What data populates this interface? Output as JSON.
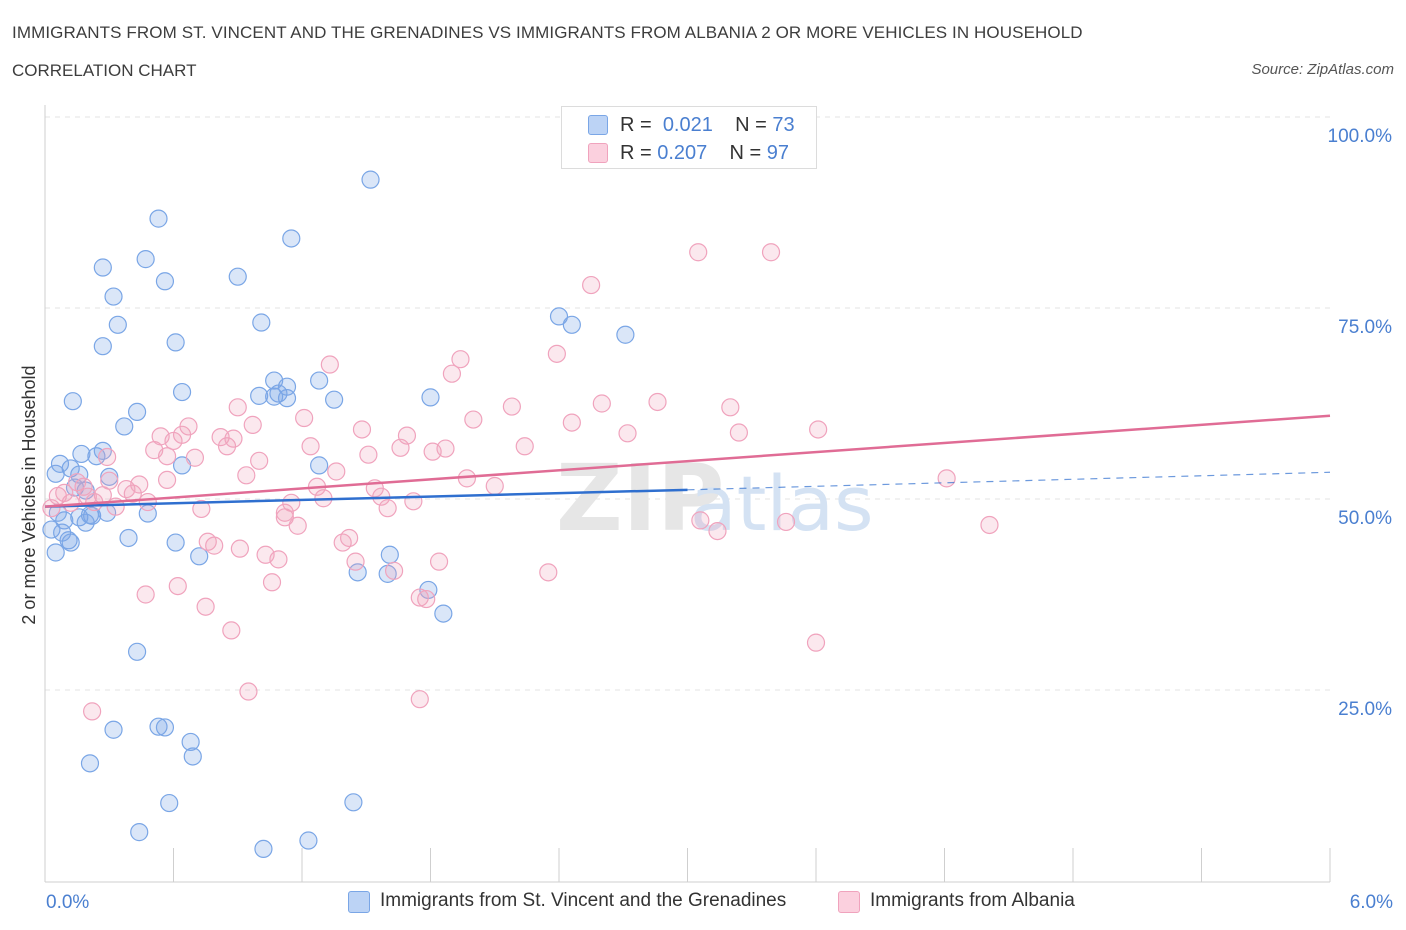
{
  "title": "IMMIGRANTS FROM ST. VINCENT AND THE GRENADINES VS IMMIGRANTS FROM ALBANIA 2 OR MORE VEHICLES IN HOUSEHOLD",
  "subtitle": "CORRELATION CHART",
  "source": "Source: ZipAtlas.com",
  "watermark": {
    "zip": "ZIP",
    "atlas": "atlas"
  },
  "legend": {
    "series1": {
      "r_label": "R =",
      "r_value": "0.021",
      "n_label": "N =",
      "n_value": "73"
    },
    "series2": {
      "r_label": "R =",
      "r_value": "0.207",
      "n_label": "N =",
      "n_value": "97"
    }
  },
  "chart_data": {
    "type": "scatter",
    "xlabel": "",
    "ylabel": "2 or more Vehicles in Household",
    "xlim": [
      0,
      6
    ],
    "ylim": [
      0,
      100
    ],
    "x_tick_labels": [
      "0.0%",
      "6.0%"
    ],
    "y_tick_labels": [
      "25.0%",
      "50.0%",
      "75.0%",
      "100.0%"
    ],
    "y_ticks": [
      25,
      50,
      75,
      100
    ],
    "grid": true,
    "colors": {
      "series1": "#7aa6e6",
      "series2": "#f0a3bd",
      "line1": "#2f6fcf",
      "line2": "#e06c95",
      "axis_text": "#4a7fd0"
    },
    "series": [
      {
        "name": "Immigrants from St. Vincent and the Grenadines",
        "trend": {
          "x0": 0,
          "y0": 49.0,
          "x1": 3.0,
          "y1": 51.2,
          "x_ext": 6.0,
          "y_ext": 53.5
        },
        "points": [
          [
            0.05,
            53.3
          ],
          [
            0.07,
            54.6
          ],
          [
            0.12,
            54.0
          ],
          [
            0.16,
            53.2
          ],
          [
            0.17,
            55.9
          ],
          [
            0.24,
            55.6
          ],
          [
            0.27,
            56.3
          ],
          [
            0.09,
            47.2
          ],
          [
            0.06,
            48.2
          ],
          [
            0.03,
            46.0
          ],
          [
            0.08,
            45.6
          ],
          [
            0.11,
            44.6
          ],
          [
            0.12,
            44.3
          ],
          [
            0.05,
            43.0
          ],
          [
            0.16,
            47.6
          ],
          [
            0.19,
            46.9
          ],
          [
            0.21,
            47.9
          ],
          [
            0.22,
            47.8
          ],
          [
            0.14,
            51.5
          ],
          [
            0.19,
            51.1
          ],
          [
            0.3,
            52.9
          ],
          [
            0.29,
            48.2
          ],
          [
            0.48,
            48.1
          ],
          [
            0.64,
            54.4
          ],
          [
            0.13,
            62.8
          ],
          [
            0.27,
            70.0
          ],
          [
            0.34,
            72.8
          ],
          [
            0.37,
            59.5
          ],
          [
            0.43,
            61.4
          ],
          [
            0.47,
            81.4
          ],
          [
            0.53,
            86.7
          ],
          [
            0.56,
            78.5
          ],
          [
            0.61,
            70.5
          ],
          [
            0.64,
            64.0
          ],
          [
            0.27,
            80.3
          ],
          [
            0.32,
            76.5
          ],
          [
            0.9,
            79.1
          ],
          [
            1.01,
            73.1
          ],
          [
            1.09,
            63.8
          ],
          [
            1.13,
            63.2
          ],
          [
            1.15,
            84.1
          ],
          [
            1.07,
            65.5
          ],
          [
            1.13,
            64.7
          ],
          [
            1.28,
            65.5
          ],
          [
            1.35,
            63.0
          ],
          [
            1.07,
            63.4
          ],
          [
            1.0,
            63.5
          ],
          [
            1.28,
            54.4
          ],
          [
            1.46,
            40.4
          ],
          [
            1.52,
            91.8
          ],
          [
            1.6,
            40.2
          ],
          [
            1.61,
            42.7
          ],
          [
            1.8,
            63.3
          ],
          [
            1.79,
            38.1
          ],
          [
            1.86,
            35.0
          ],
          [
            2.4,
            73.9
          ],
          [
            2.46,
            72.8
          ],
          [
            2.71,
            71.5
          ],
          [
            0.72,
            42.5
          ],
          [
            0.61,
            44.3
          ],
          [
            0.39,
            44.9
          ],
          [
            0.43,
            30.0
          ],
          [
            0.53,
            20.2
          ],
          [
            0.56,
            20.1
          ],
          [
            0.68,
            18.2
          ],
          [
            0.69,
            16.3
          ],
          [
            0.32,
            19.8
          ],
          [
            0.21,
            15.4
          ],
          [
            0.58,
            10.2
          ],
          [
            0.44,
            6.4
          ],
          [
            1.02,
            4.2
          ],
          [
            1.23,
            5.3
          ],
          [
            1.44,
            10.3
          ]
        ]
      },
      {
        "name": "Immigrants from Albania",
        "trend": {
          "x0": 0,
          "y0": 49.0,
          "x1": 6.0,
          "y1": 60.9
        },
        "points": [
          [
            0.03,
            48.8
          ],
          [
            0.06,
            50.4
          ],
          [
            0.09,
            50.8
          ],
          [
            0.12,
            49.5
          ],
          [
            0.15,
            52.2
          ],
          [
            0.18,
            51.6
          ],
          [
            0.2,
            50.3
          ],
          [
            0.23,
            49.6
          ],
          [
            0.27,
            50.5
          ],
          [
            0.29,
            55.5
          ],
          [
            0.3,
            52.4
          ],
          [
            0.33,
            49.0
          ],
          [
            0.38,
            51.3
          ],
          [
            0.41,
            50.7
          ],
          [
            0.44,
            51.9
          ],
          [
            0.48,
            49.6
          ],
          [
            0.51,
            56.4
          ],
          [
            0.54,
            58.2
          ],
          [
            0.57,
            55.6
          ],
          [
            0.6,
            57.6
          ],
          [
            0.64,
            58.4
          ],
          [
            0.67,
            59.5
          ],
          [
            0.7,
            55.4
          ],
          [
            0.73,
            48.7
          ],
          [
            0.76,
            44.4
          ],
          [
            0.79,
            43.9
          ],
          [
            0.82,
            58.1
          ],
          [
            0.85,
            56.9
          ],
          [
            0.88,
            57.9
          ],
          [
            0.91,
            43.5
          ],
          [
            0.94,
            53.1
          ],
          [
            0.97,
            59.7
          ],
          [
            1.0,
            55.0
          ],
          [
            1.03,
            42.7
          ],
          [
            1.06,
            39.1
          ],
          [
            1.09,
            42.1
          ],
          [
            1.12,
            47.6
          ],
          [
            1.15,
            49.5
          ],
          [
            1.18,
            46.5
          ],
          [
            1.21,
            60.6
          ],
          [
            1.24,
            56.9
          ],
          [
            1.27,
            51.6
          ],
          [
            1.3,
            50.1
          ],
          [
            1.33,
            67.6
          ],
          [
            1.36,
            53.6
          ],
          [
            1.39,
            44.3
          ],
          [
            1.42,
            44.9
          ],
          [
            1.45,
            41.8
          ],
          [
            1.48,
            59.1
          ],
          [
            1.51,
            55.8
          ],
          [
            1.54,
            51.4
          ],
          [
            1.57,
            50.3
          ],
          [
            1.6,
            48.8
          ],
          [
            1.63,
            40.6
          ],
          [
            1.66,
            56.7
          ],
          [
            1.69,
            58.3
          ],
          [
            1.72,
            49.7
          ],
          [
            1.75,
            37.1
          ],
          [
            1.78,
            36.9
          ],
          [
            1.81,
            56.2
          ],
          [
            1.84,
            41.8
          ],
          [
            1.87,
            56.6
          ],
          [
            1.9,
            66.4
          ],
          [
            1.94,
            68.3
          ],
          [
            1.97,
            52.7
          ],
          [
            2.0,
            60.4
          ],
          [
            2.1,
            51.7
          ],
          [
            2.18,
            62.1
          ],
          [
            2.24,
            56.9
          ],
          [
            2.39,
            69.0
          ],
          [
            2.46,
            60.0
          ],
          [
            2.55,
            78.0
          ],
          [
            2.6,
            62.5
          ],
          [
            2.72,
            58.6
          ],
          [
            2.86,
            62.7
          ],
          [
            3.05,
            82.3
          ],
          [
            3.06,
            47.2
          ],
          [
            3.14,
            45.8
          ],
          [
            3.2,
            62.0
          ],
          [
            3.24,
            58.7
          ],
          [
            3.39,
            82.3
          ],
          [
            3.46,
            47.0
          ],
          [
            3.61,
            59.1
          ],
          [
            4.21,
            52.7
          ],
          [
            4.41,
            46.6
          ],
          [
            0.47,
            37.5
          ],
          [
            0.57,
            52.5
          ],
          [
            0.62,
            38.6
          ],
          [
            0.75,
            35.9
          ],
          [
            0.87,
            32.8
          ],
          [
            0.95,
            24.8
          ],
          [
            1.12,
            48.2
          ],
          [
            1.75,
            23.8
          ],
          [
            2.35,
            40.4
          ],
          [
            3.6,
            31.2
          ],
          [
            0.22,
            22.2
          ],
          [
            0.9,
            62.0
          ]
        ]
      }
    ]
  },
  "bottom_legend": {
    "series1": "Immigrants from St. Vincent and the Grenadines",
    "series2": "Immigrants from Albania"
  }
}
